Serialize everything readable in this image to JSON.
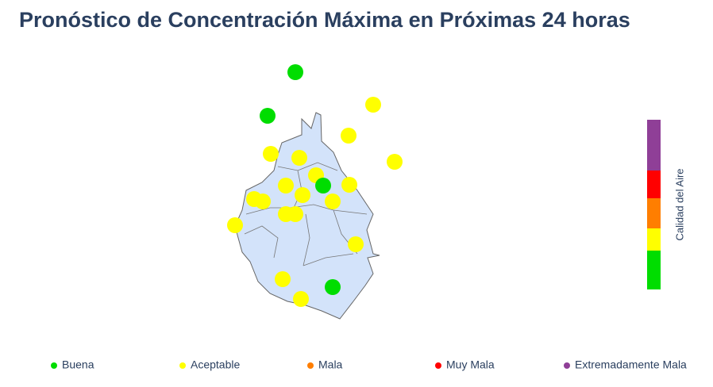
{
  "title": "Pronóstico de Concentración Máxima en Próximas 24 horas",
  "colorbar_label": "Calidad del Aire",
  "legend": [
    {
      "label": "Buena",
      "color": "#00dd00"
    },
    {
      "label": "Aceptable",
      "color": "#ffff00"
    },
    {
      "label": "Mala",
      "color": "#ff7e00"
    },
    {
      "label": "Muy Mala",
      "color": "#ff0000"
    },
    {
      "label": "Extremadamente Mala",
      "color": "#8f3f97"
    }
  ]
}
